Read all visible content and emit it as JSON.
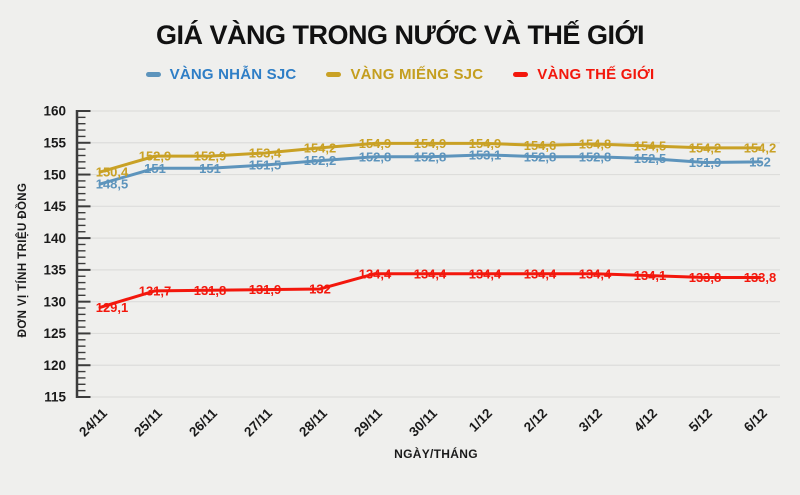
{
  "style": {
    "background": "#EFEFED",
    "grid_color": "#DDDDDB",
    "axis_color": "#3C3C3C",
    "text_color": "#1A1A1A",
    "title_color": "#111111"
  },
  "chart_data": {
    "type": "line",
    "title": "GIÁ VÀNG TRONG NƯỚC VÀ THẾ GIỚI",
    "xlabel": "NGÀY/THÁNG",
    "ylabel": "ĐƠN VỊ TÍNH TRIỆU ĐỒNG",
    "ylim": [
      115,
      160
    ],
    "y_major_step": 5,
    "y_minor_step": 1,
    "grid": "horizontal-major-gridlines",
    "legend_position": "top",
    "decimal_separator": ",",
    "categories": [
      "24/11",
      "25/11",
      "26/11",
      "27/11",
      "28/11",
      "29/11",
      "30/11",
      "1/12",
      "2/12",
      "3/12",
      "4/12",
      "5/12",
      "6/12"
    ],
    "series": [
      {
        "name": "VÀNG NHẪN SJC",
        "color": "#5D94BC",
        "legend_text_color": "#2E7EC6",
        "values": [
          148.5,
          151,
          151,
          151.5,
          152.2,
          152.8,
          152.8,
          153.1,
          152.8,
          152.8,
          152.5,
          151.9,
          152
        ],
        "point_labels": [
          "148,5",
          "151",
          "151",
          "151,5",
          "152,2",
          "152,8",
          "152,8",
          "153,1",
          "152,8",
          "152,8",
          "152,5",
          "151,9",
          "152"
        ]
      },
      {
        "name": "VÀNG MIẾNG SJC",
        "color": "#C9A125",
        "legend_text_color": "#C49E1F",
        "values": [
          150.4,
          152.9,
          152.9,
          153.4,
          154.2,
          154.9,
          154.9,
          154.9,
          154.6,
          154.8,
          154.5,
          154.2,
          154.2
        ],
        "point_labels": [
          "150,4",
          "152,9",
          "152,9",
          "153,4",
          "154,2",
          "154,9",
          "154,9",
          "154,9",
          "154,6",
          "154,8",
          "154,5",
          "154,2",
          "154,2"
        ]
      },
      {
        "name": "VÀNG THẾ GIỚI",
        "color": "#F3170C",
        "legend_text_color": "#F3170C",
        "values": [
          129.1,
          131.7,
          131.8,
          131.9,
          132,
          134.4,
          134.4,
          134.4,
          134.4,
          134.4,
          134.1,
          133.8,
          133.8
        ],
        "point_labels": [
          "129,1",
          "131,7",
          "131,8",
          "131,9",
          "132",
          "134,4",
          "134,4",
          "134,4",
          "134,4",
          "134,4",
          "134,1",
          "133,8",
          "133,8"
        ]
      }
    ]
  }
}
